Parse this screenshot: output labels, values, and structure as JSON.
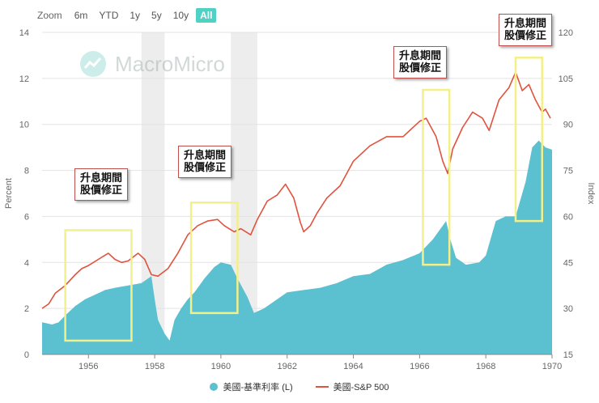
{
  "zoom": {
    "label": "Zoom",
    "buttons": [
      "6m",
      "YTD",
      "1y",
      "5y",
      "10y",
      "All"
    ],
    "active": "All"
  },
  "watermark": "MacroMicro",
  "callouts": [
    {
      "line1": "升息期間",
      "line2": "股價修正"
    },
    {
      "line1": "升息期間",
      "line2": "股價修正"
    },
    {
      "line1": "升息期間",
      "line2": "股價修正"
    },
    {
      "line1": "升息期間",
      "line2": "股價修正"
    }
  ],
  "legend": {
    "rate": "美國-基準利率 (L)",
    "sp500": "美國-S&P 500"
  },
  "colors": {
    "rate": "#5bc0cf",
    "sp500": "#e0533d",
    "highlight_box": "#f3f08a",
    "shade": "#e6e6e6",
    "zoom_active": "#4fd1c5"
  },
  "chart_data": {
    "type": "area+line",
    "xlabel": "",
    "ylabel_left": "Percent",
    "ylabel_right": "Index",
    "x_range": [
      1954.6,
      1970.0
    ],
    "x_ticks": [
      "1956",
      "1958",
      "1960",
      "1962",
      "1964",
      "1966",
      "1968",
      "1970"
    ],
    "y_left": {
      "min": 0,
      "max": 14,
      "ticks": [
        "0",
        "2",
        "4",
        "6",
        "8",
        "10",
        "12",
        "14"
      ]
    },
    "y_right": {
      "min": 15,
      "max": 120,
      "ticks": [
        "15",
        "30",
        "45",
        "60",
        "75",
        "90",
        "105",
        "120"
      ]
    },
    "grid": "horizontal",
    "legend_position": "bottom",
    "shaded_periods": [
      [
        1957.6,
        1958.3
      ],
      [
        1960.3,
        1961.1
      ]
    ],
    "highlight_periods": [
      {
        "x": [
          1955.3,
          1957.3
        ],
        "y": [
          0.6,
          5.4
        ]
      },
      {
        "x": [
          1959.1,
          1960.5
        ],
        "y": [
          1.8,
          6.6
        ]
      },
      {
        "x": [
          1966.1,
          1966.9
        ],
        "y": [
          3.9,
          11.5
        ]
      },
      {
        "x": [
          1968.9,
          1969.7
        ],
        "y": [
          5.8,
          12.9
        ]
      }
    ],
    "series": [
      {
        "name": "美國-基準利率 (L)",
        "kind": "area",
        "points": [
          [
            1954.6,
            1.4
          ],
          [
            1954.9,
            1.3
          ],
          [
            1955.1,
            1.4
          ],
          [
            1955.3,
            1.7
          ],
          [
            1955.6,
            2.1
          ],
          [
            1955.9,
            2.4
          ],
          [
            1956.2,
            2.6
          ],
          [
            1956.5,
            2.8
          ],
          [
            1956.8,
            2.9
          ],
          [
            1957.2,
            3.0
          ],
          [
            1957.6,
            3.1
          ],
          [
            1957.9,
            3.4
          ],
          [
            1958.0,
            2.4
          ],
          [
            1958.1,
            1.5
          ],
          [
            1958.3,
            0.9
          ],
          [
            1958.45,
            0.6
          ],
          [
            1958.6,
            1.5
          ],
          [
            1958.8,
            2.0
          ],
          [
            1959.0,
            2.4
          ],
          [
            1959.2,
            2.7
          ],
          [
            1959.5,
            3.3
          ],
          [
            1959.8,
            3.8
          ],
          [
            1960.0,
            4.0
          ],
          [
            1960.3,
            3.9
          ],
          [
            1960.5,
            3.3
          ],
          [
            1960.8,
            2.5
          ],
          [
            1961.0,
            1.8
          ],
          [
            1961.3,
            2.0
          ],
          [
            1961.6,
            2.3
          ],
          [
            1962.0,
            2.7
          ],
          [
            1962.5,
            2.8
          ],
          [
            1963.0,
            2.9
          ],
          [
            1963.5,
            3.1
          ],
          [
            1964.0,
            3.4
          ],
          [
            1964.5,
            3.5
          ],
          [
            1965.0,
            3.9
          ],
          [
            1965.5,
            4.1
          ],
          [
            1966.0,
            4.4
          ],
          [
            1966.4,
            5.0
          ],
          [
            1966.8,
            5.8
          ],
          [
            1966.95,
            4.9
          ],
          [
            1967.1,
            4.2
          ],
          [
            1967.4,
            3.9
          ],
          [
            1967.8,
            4.0
          ],
          [
            1968.0,
            4.3
          ],
          [
            1968.3,
            5.8
          ],
          [
            1968.6,
            6.0
          ],
          [
            1968.9,
            6.0
          ],
          [
            1969.2,
            7.5
          ],
          [
            1969.4,
            9.0
          ],
          [
            1969.6,
            9.3
          ],
          [
            1969.8,
            9.0
          ],
          [
            1970.0,
            8.9
          ]
        ]
      },
      {
        "name": "美國-S&P 500",
        "kind": "line",
        "points": [
          [
            1954.6,
            30
          ],
          [
            1954.8,
            31.5
          ],
          [
            1955.0,
            35
          ],
          [
            1955.3,
            37.5
          ],
          [
            1955.6,
            41
          ],
          [
            1955.8,
            43
          ],
          [
            1956.0,
            44
          ],
          [
            1956.3,
            46
          ],
          [
            1956.6,
            48
          ],
          [
            1956.8,
            46
          ],
          [
            1957.0,
            45
          ],
          [
            1957.2,
            45.5
          ],
          [
            1957.5,
            48
          ],
          [
            1957.7,
            46
          ],
          [
            1957.9,
            41
          ],
          [
            1958.1,
            40.5
          ],
          [
            1958.4,
            43
          ],
          [
            1958.7,
            48
          ],
          [
            1959.0,
            54
          ],
          [
            1959.3,
            57
          ],
          [
            1959.6,
            58.5
          ],
          [
            1959.9,
            59
          ],
          [
            1960.1,
            57
          ],
          [
            1960.4,
            55
          ],
          [
            1960.6,
            56
          ],
          [
            1960.9,
            54
          ],
          [
            1961.1,
            59
          ],
          [
            1961.4,
            65
          ],
          [
            1961.7,
            67
          ],
          [
            1961.95,
            70.5
          ],
          [
            1962.2,
            66
          ],
          [
            1962.4,
            58
          ],
          [
            1962.5,
            55
          ],
          [
            1962.7,
            57
          ],
          [
            1962.9,
            61
          ],
          [
            1963.2,
            66
          ],
          [
            1963.6,
            70
          ],
          [
            1964.0,
            78
          ],
          [
            1964.5,
            83
          ],
          [
            1965.0,
            86
          ],
          [
            1965.5,
            86
          ],
          [
            1966.0,
            91
          ],
          [
            1966.2,
            92
          ],
          [
            1966.5,
            86
          ],
          [
            1966.7,
            78
          ],
          [
            1966.85,
            74
          ],
          [
            1967.0,
            82
          ],
          [
            1967.3,
            89
          ],
          [
            1967.6,
            94
          ],
          [
            1967.9,
            92
          ],
          [
            1968.1,
            88
          ],
          [
            1968.4,
            98
          ],
          [
            1968.7,
            102
          ],
          [
            1968.9,
            107
          ],
          [
            1969.1,
            101
          ],
          [
            1969.3,
            103
          ],
          [
            1969.5,
            98
          ],
          [
            1969.7,
            94
          ],
          [
            1969.8,
            95
          ],
          [
            1969.95,
            92
          ]
        ]
      }
    ]
  }
}
